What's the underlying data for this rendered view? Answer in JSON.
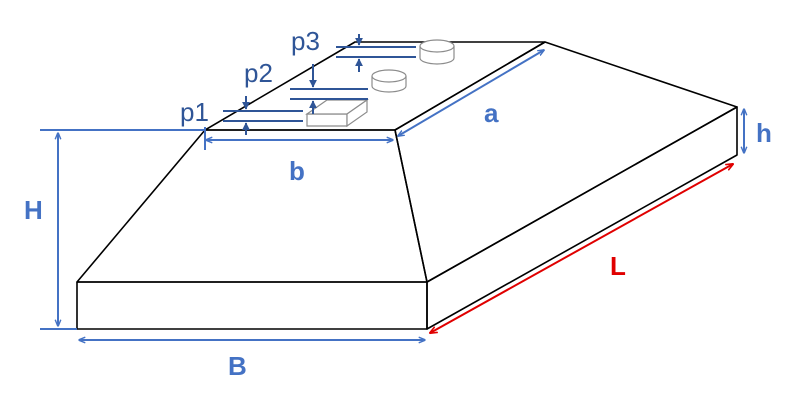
{
  "labels": {
    "a": "a",
    "b": "b",
    "B": "B",
    "H": "H",
    "h": "h",
    "L": "L",
    "p1": "p1",
    "p2": "p2",
    "p3": "p3"
  },
  "colors": {
    "outline": "#000000",
    "dimension": "#4472c4",
    "dark_dimension": "#2f5597",
    "accent": "#e00000",
    "outlet": "#a6a6a6"
  },
  "icons": {
    "outlets": [
      "rectangular-outlet-icon",
      "round-outlet-icon",
      "round-outlet-icon"
    ]
  }
}
